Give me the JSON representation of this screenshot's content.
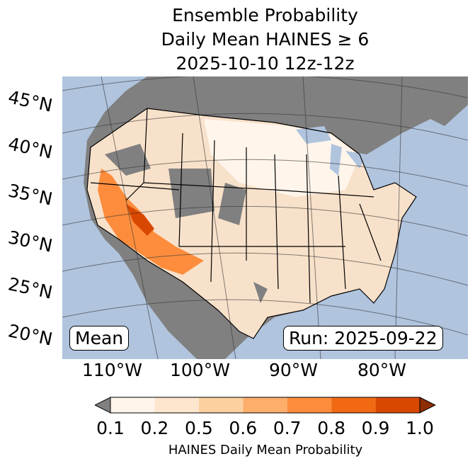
{
  "title": {
    "line1": "Ensemble Probability",
    "line2": "Daily Mean HAINES ≥ 6",
    "line3": "2025-10-10 12z-12z"
  },
  "lat_labels": [
    "45°N",
    "40°N",
    "35°N",
    "30°N",
    "25°N",
    "20°N"
  ],
  "lon_labels": [
    "110°W",
    "100°W",
    "90°W",
    "80°W"
  ],
  "map": {
    "mean_label": "Mean",
    "run_label": "Run: 2025-09-22",
    "ocean": "#b0c4de",
    "land_below": "#808080"
  },
  "colorbar": {
    "ticks": [
      "0.1",
      "0.2",
      "0.5",
      "0.6",
      "0.7",
      "0.8",
      "0.9",
      "1.0"
    ],
    "colors": [
      "#fff5eb",
      "#fee6ce",
      "#fdd0a2",
      "#fdae6b",
      "#fd8d3c",
      "#f16913",
      "#d94801"
    ],
    "under": "#808080",
    "over": "#8c2d04",
    "label": "HAINES Daily Mean Probability"
  }
}
